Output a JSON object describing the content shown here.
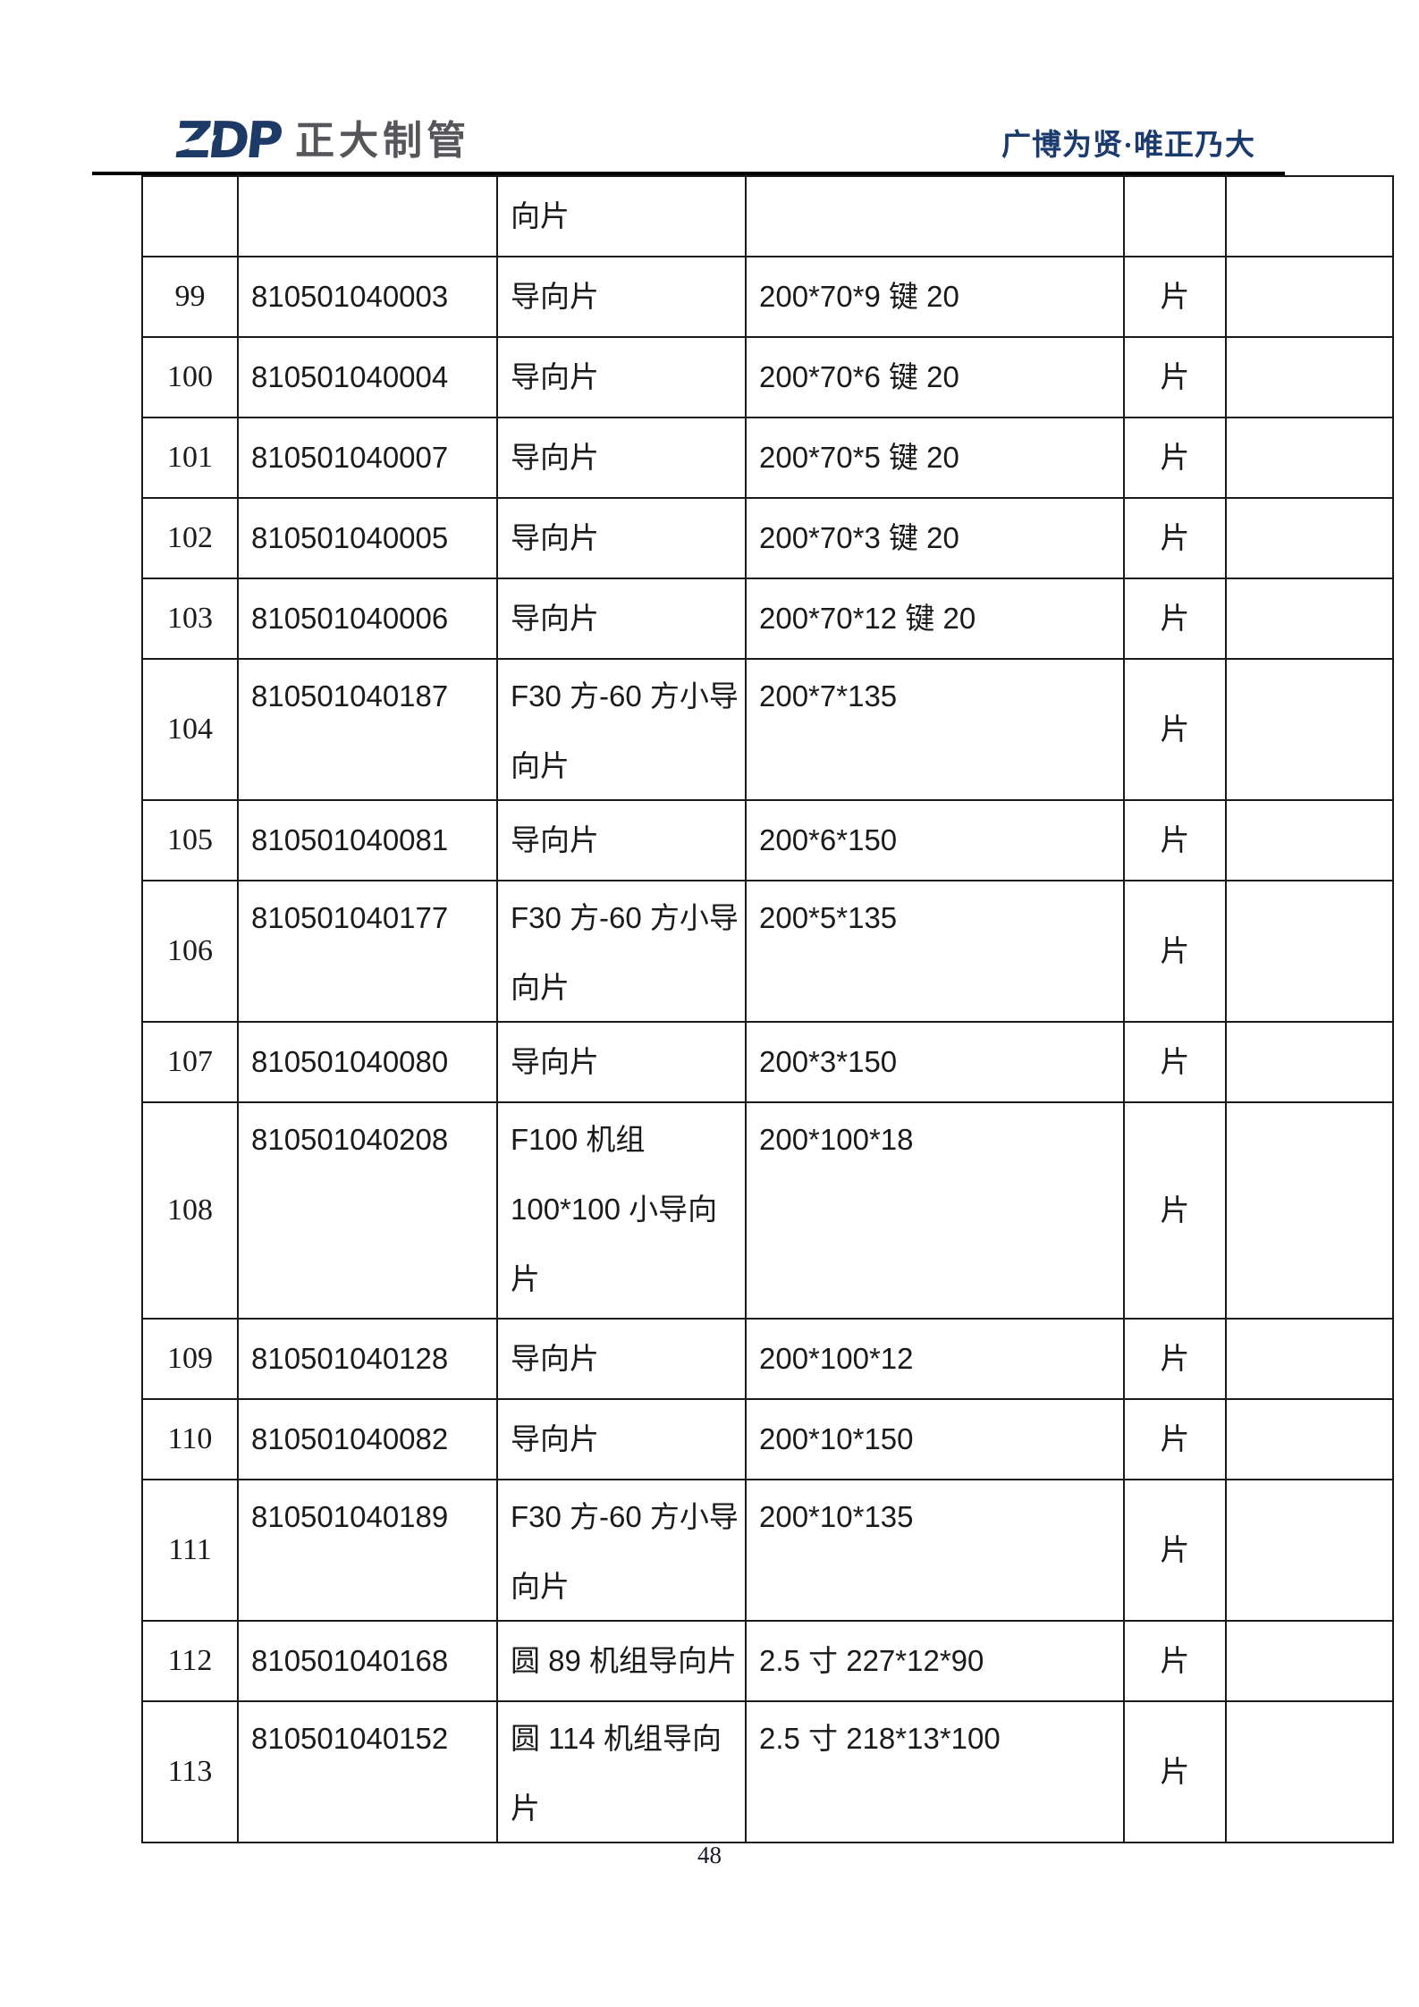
{
  "header": {
    "logo_text": "ZDP",
    "company_name": "正大制管",
    "slogan": "广博为贤·唯正乃大"
  },
  "colors": {
    "brand_navy": "#1b3a6e",
    "logo_gray": "#55565a",
    "table_border": "#1a1a1a"
  },
  "table": {
    "rows": [
      {
        "no": "",
        "code": "",
        "name": "向片",
        "spec": "",
        "unit": "",
        "remark": ""
      },
      {
        "no": "99",
        "code": "810501040003",
        "name": "导向片",
        "spec": "200*70*9 键 20",
        "unit": "片",
        "remark": ""
      },
      {
        "no": "100",
        "code": "810501040004",
        "name": "导向片",
        "spec": "200*70*6 键 20",
        "unit": "片",
        "remark": ""
      },
      {
        "no": "101",
        "code": "810501040007",
        "name": "导向片",
        "spec": "200*70*5 键 20",
        "unit": "片",
        "remark": ""
      },
      {
        "no": "102",
        "code": "810501040005",
        "name": "导向片",
        "spec": "200*70*3 键 20",
        "unit": "片",
        "remark": ""
      },
      {
        "no": "103",
        "code": "810501040006",
        "name": "导向片",
        "spec": "200*70*12 键 20",
        "unit": "片",
        "remark": ""
      },
      {
        "no": "104",
        "code": "810501040187",
        "name": "F30 方-60 方小导\n向片",
        "spec": "200*7*135",
        "unit": "片",
        "remark": ""
      },
      {
        "no": "105",
        "code": "810501040081",
        "name": "导向片",
        "spec": "200*6*150",
        "unit": "片",
        "remark": ""
      },
      {
        "no": "106",
        "code": "810501040177",
        "name": "F30 方-60 方小导\n向片",
        "spec": "200*5*135",
        "unit": "片",
        "remark": ""
      },
      {
        "no": "107",
        "code": "810501040080",
        "name": "导向片",
        "spec": "200*3*150",
        "unit": "片",
        "remark": ""
      },
      {
        "no": "108",
        "code": "810501040208",
        "name": "F100 机组\n100*100 小导向\n片",
        "spec": "200*100*18",
        "unit": "片",
        "remark": ""
      },
      {
        "no": "109",
        "code": "810501040128",
        "name": "导向片",
        "spec": "200*100*12",
        "unit": "片",
        "remark": ""
      },
      {
        "no": "110",
        "code": "810501040082",
        "name": "导向片",
        "spec": "200*10*150",
        "unit": "片",
        "remark": ""
      },
      {
        "no": "111",
        "code": "810501040189",
        "name": "F30 方-60 方小导\n向片",
        "spec": "200*10*135",
        "unit": "片",
        "remark": ""
      },
      {
        "no": "112",
        "code": "810501040168",
        "name": "圆 89 机组导向片",
        "spec": "2.5 寸 227*12*90",
        "unit": "片",
        "remark": ""
      },
      {
        "no": "113",
        "code": "810501040152",
        "name": "圆 114 机组导向\n片",
        "spec": "2.5 寸 218*13*100",
        "unit": "片",
        "remark": ""
      }
    ]
  },
  "footer": {
    "page_number": "48"
  }
}
